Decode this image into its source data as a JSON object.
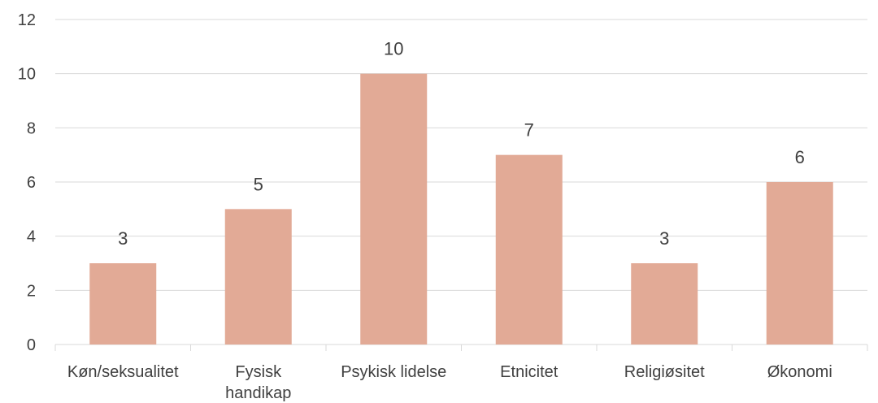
{
  "chart_data": {
    "type": "bar",
    "categories": [
      "Køn/seksualitet",
      "Fysisk handikap",
      "Psykisk lidelse",
      "Etnicitet",
      "Religiøsitet",
      "Økonomi"
    ],
    "category_lines": [
      [
        "Køn/seksualitet"
      ],
      [
        "Fysisk",
        "handikap"
      ],
      [
        "Psykisk lidelse"
      ],
      [
        "Etnicitet"
      ],
      [
        "Religiøsitet"
      ],
      [
        "Økonomi"
      ]
    ],
    "values": [
      3,
      5,
      10,
      7,
      3,
      6
    ],
    "title": "",
    "xlabel": "",
    "ylabel": "",
    "ylim": [
      0,
      12
    ],
    "yticks": [
      0,
      2,
      4,
      6,
      8,
      10,
      12
    ],
    "grid": true,
    "data_labels": true,
    "bar_color": "#e2aa96"
  }
}
